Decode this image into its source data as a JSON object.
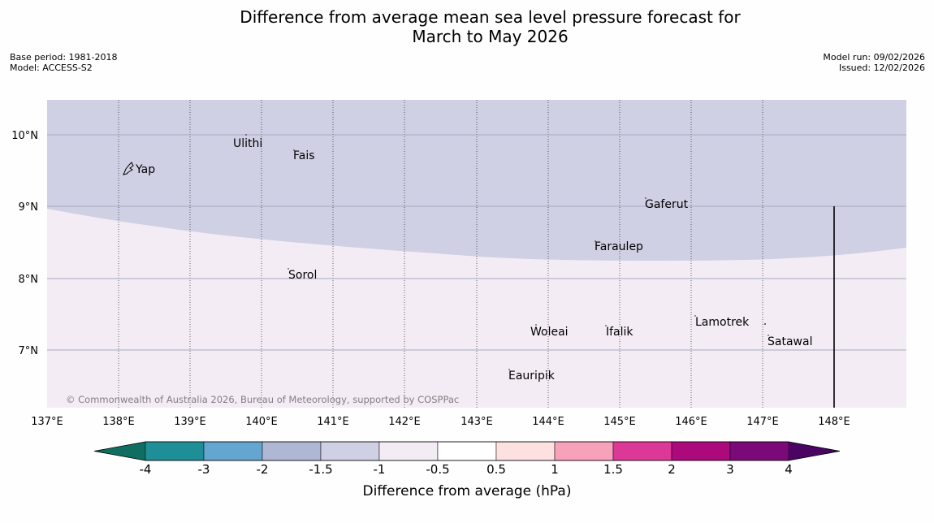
{
  "title": {
    "line1": "Difference from average mean sea level pressure forecast for",
    "line2": "March to May 2026"
  },
  "meta_left": {
    "base_period": "Base period: 1981-2018",
    "model": "Model: ACCESS-S2"
  },
  "meta_right": {
    "model_run": "Model run: 09/02/2026",
    "issued": "Issued: 12/02/2026"
  },
  "map": {
    "lon_labels": [
      "137°E",
      "138°E",
      "139°E",
      "140°E",
      "141°E",
      "142°E",
      "143°E",
      "144°E",
      "145°E",
      "146°E",
      "147°E",
      "148°E"
    ],
    "lat_labels": [
      "10°N",
      "9°N",
      "8°N",
      "7°N"
    ],
    "places": [
      {
        "name": "Ulithi"
      },
      {
        "name": "Fais"
      },
      {
        "name": "Yap"
      },
      {
        "name": "Gaferut"
      },
      {
        "name": "Faraulep"
      },
      {
        "name": "Sorol"
      },
      {
        "name": "Lamotrek"
      },
      {
        "name": "Woleai"
      },
      {
        "name": "Ifalik"
      },
      {
        "name": "Satawal"
      },
      {
        "name": "Eauripik"
      }
    ],
    "copyright": "© Commonwealth of Australia 2026, Bureau of Meteorology, supported by COSPPac",
    "colors": {
      "region_minus_1_5_to_minus_1": "#cfd0e3",
      "region_minus_1_to_minus_0_5": "#f4ecf5"
    }
  },
  "colorbar": {
    "colors": [
      "#0f6e61",
      "#1e8f96",
      "#64a6d0",
      "#aeb8d4",
      "#cfd0e3",
      "#f4ecf5",
      "#ffffff",
      "#fde0e0",
      "#f8a1bb",
      "#dc3898",
      "#ac0a7c",
      "#7c0978",
      "#4a0462"
    ],
    "tick_labels": [
      "-4",
      "-3",
      "-2",
      "-1.5",
      "-1",
      "-0.5",
      "0.5",
      "1",
      "1.5",
      "2",
      "3",
      "4"
    ],
    "label": "Difference from average (hPa)"
  }
}
